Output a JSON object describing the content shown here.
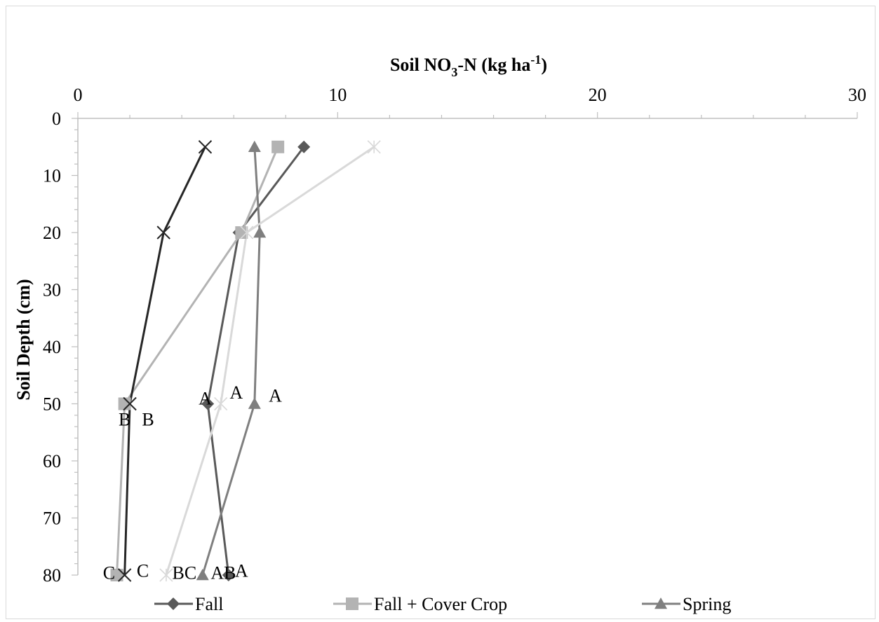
{
  "chart_data": {
    "type": "line",
    "orientation": "depth-profile",
    "title_main": "Soil NO",
    "title_sub": "3",
    "title_mid": "-N  (kg ha",
    "title_sup": "-1",
    "title_end": ")",
    "xlabel": "Soil NO3-N (kg ha-1)",
    "ylabel": "Soil Depth (cm)",
    "x_axis_position": "top",
    "xlim": [
      0,
      30
    ],
    "ylim": [
      0,
      80
    ],
    "x_ticks": [
      0,
      10,
      20,
      30
    ],
    "y_ticks": [
      0,
      10,
      20,
      30,
      40,
      50,
      60,
      70,
      80
    ],
    "x_tick_labels": [
      "0",
      "10",
      "20",
      "30"
    ],
    "y_tick_labels": [
      "0",
      "10",
      "20",
      "30",
      "40",
      "50",
      "60",
      "70",
      "80"
    ],
    "legend_position": "bottom",
    "depths": [
      5,
      20,
      50,
      80
    ],
    "series": [
      {
        "name": "Fall",
        "color": "#595959",
        "marker": "diamond",
        "values": [
          8.7,
          6.2,
          5.0,
          5.8
        ]
      },
      {
        "name": "Fall + Cover Crop",
        "color": "#b3b3b3",
        "marker": "square",
        "values": [
          7.7,
          6.3,
          1.8,
          1.5
        ]
      },
      {
        "name": "Spring",
        "color": "#7f7f7f",
        "marker": "triangle",
        "values": [
          6.8,
          7.0,
          6.8,
          4.8
        ]
      },
      {
        "name": "",
        "color": "#d9d9d9",
        "marker": "star",
        "values": [
          11.4,
          6.5,
          5.5,
          3.4
        ]
      },
      {
        "name": "",
        "color": "#262626",
        "marker": "x",
        "values": [
          4.9,
          3.3,
          2.0,
          1.8
        ]
      }
    ],
    "annotations": [
      {
        "text": "A",
        "x": 4.9,
        "y": 49
      },
      {
        "text": "A",
        "x": 6.1,
        "y": 48
      },
      {
        "text": "A",
        "x": 7.6,
        "y": 48.5
      },
      {
        "text": "B",
        "x": 1.8,
        "y": 52.7
      },
      {
        "text": "B",
        "x": 2.7,
        "y": 52.7
      },
      {
        "text": "C",
        "x": 1.2,
        "y": 79.6
      },
      {
        "text": "C",
        "x": 2.5,
        "y": 79.2
      },
      {
        "text": "BC",
        "x": 4.1,
        "y": 79.6
      },
      {
        "text": "AB",
        "x": 5.6,
        "y": 79.6
      },
      {
        "text": "A",
        "x": 6.3,
        "y": 79.2
      }
    ]
  }
}
